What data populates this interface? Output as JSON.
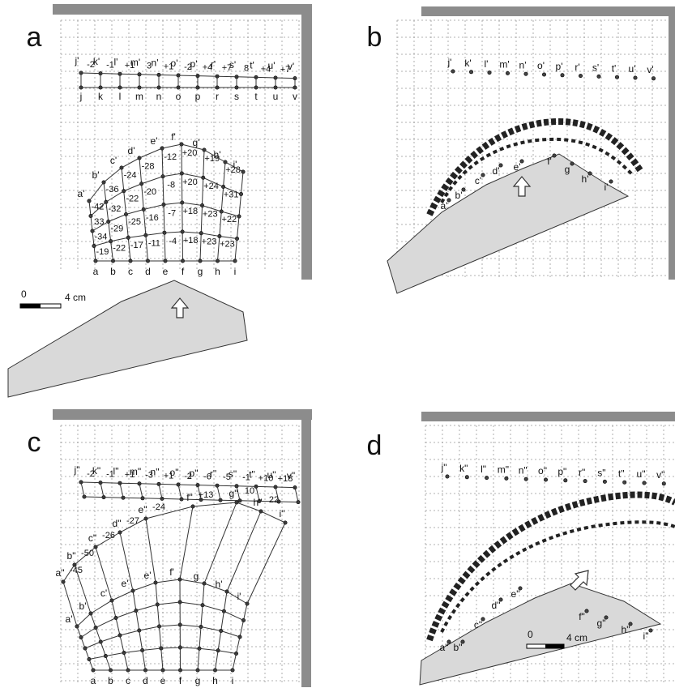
{
  "panels": [
    {
      "letter": "a",
      "upper_labels": [
        "j'",
        "k'",
        "l'",
        "m'",
        "n'",
        "o'",
        "p'",
        "r'",
        "s'",
        "t'",
        "u'",
        "v'"
      ],
      "upper_numbers": [
        "-2",
        "-1",
        "+1",
        "3",
        "+1",
        "-2",
        "+4",
        "+7",
        "8",
        "+4",
        "+7"
      ],
      "lower_labels": [
        "j",
        "k",
        "l",
        "m",
        "n",
        "o",
        "p",
        "r",
        "s",
        "t",
        "u",
        "v"
      ],
      "arc_labels": [
        "a'",
        "b'",
        "c'",
        "d'",
        "e'",
        "f'",
        "g'",
        "h'",
        "i'"
      ],
      "arc_numbers": [
        [
          "-42",
          "33",
          "-34",
          "-19"
        ],
        [
          "-36",
          "-32",
          "-29",
          "-22"
        ],
        [
          "-24",
          "-22",
          "-25",
          "-17"
        ],
        [
          "-28",
          "-20",
          "-16",
          "-11"
        ],
        [
          "-12",
          "-8",
          "-7",
          "-4"
        ],
        [
          "+20",
          "+20",
          "+18",
          "+18"
        ],
        [
          "+19",
          "+24",
          "+23",
          "+23"
        ],
        [
          "+28",
          "+31",
          "+22",
          "+23"
        ]
      ],
      "base_labels": [
        "a",
        "b",
        "c",
        "d",
        "e",
        "f",
        "g",
        "h",
        "i"
      ]
    },
    {
      "letter": "b",
      "upper_labels": [
        "j'",
        "k'",
        "l'",
        "m'",
        "n'",
        "o'",
        "p'",
        "r'",
        "s'",
        "t'",
        "u'",
        "v'"
      ],
      "arc_labels": [
        "a'",
        "b'",
        "c'",
        "d'",
        "e'",
        "f'",
        "g",
        "h'",
        "i'"
      ]
    },
    {
      "letter": "c",
      "upper_labels": [
        "j\"",
        "k\"",
        "l\"",
        "m\"",
        "n\"",
        "o\"",
        "p\"",
        "r\"",
        "s\"",
        "t\"",
        "u\"",
        "v\""
      ],
      "upper_numbers": [
        "-2",
        "-1",
        "+1",
        "-3",
        "+1",
        "-2",
        "-6",
        "-5",
        "-1",
        "+10",
        "+18"
      ],
      "double_labels": [
        "a\"",
        "b\"",
        "c\"",
        "d\"",
        "e\"",
        "f\"",
        "g\"",
        "h\"",
        "i\""
      ],
      "double_numbers": [
        "-45",
        "-50",
        "-26",
        "-27",
        "-24",
        "+13",
        "10",
        "22"
      ],
      "arc_labels": [
        "a'",
        "b'",
        "c'",
        "e'",
        "e'",
        "f'",
        "g",
        "h'",
        "i'"
      ],
      "base_labels": [
        "a",
        "b",
        "c",
        "d",
        "e",
        "f",
        "g",
        "h",
        "i"
      ]
    },
    {
      "letter": "d",
      "upper_labels": [
        "j\"",
        "k\"",
        "l\"",
        "m\"",
        "n\"",
        "o\"",
        "p\"",
        "r\"",
        "s\"",
        "t\"",
        "u\"",
        "v\""
      ],
      "arc_labels": [
        "a\"",
        "b\"",
        "c\"",
        "d\"",
        "e\"",
        "f\"",
        "g\"",
        "h\"",
        "i\""
      ]
    }
  ],
  "scale_bars": [
    {
      "zero": "0",
      "length": "4 cm"
    },
    {
      "zero": "0",
      "length": "4 cm"
    }
  ]
}
